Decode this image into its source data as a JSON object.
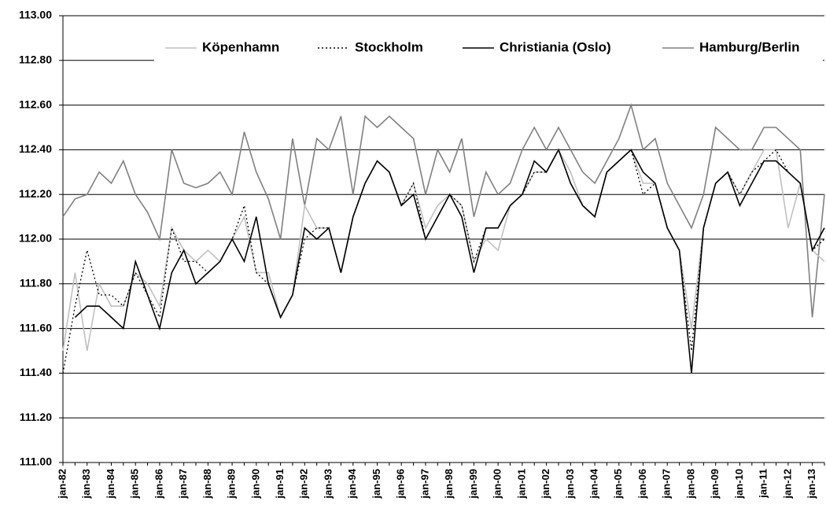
{
  "chart_data": {
    "type": "line",
    "categories": [
      "jan-82",
      null,
      "jan-83",
      null,
      "jan-84",
      null,
      "jan-85",
      null,
      "jan-86",
      null,
      "jan-87",
      null,
      "jan-88",
      null,
      "jan-89",
      null,
      "jan-90",
      null,
      "jan-91",
      null,
      "jan-92",
      null,
      "jan-93",
      null,
      "jan-94",
      null,
      "jan-95",
      null,
      "jan-96",
      null,
      "jan-97",
      null,
      "jan-98",
      null,
      "jan-99",
      null,
      "jan-00",
      null,
      "jan-01",
      null,
      "jan-02",
      null,
      "jan-03",
      null,
      "jan-04",
      null,
      "jan-05",
      null,
      "jan-06",
      null,
      "jan-07",
      null,
      "jan-08",
      null,
      "jan-09",
      null,
      "jan-10",
      null,
      "jan-11",
      null,
      "jan-12",
      null,
      "jan-13",
      null
    ],
    "series": [
      {
        "name": "Köpenhamn",
        "color": "#c0c0c0",
        "dash": "solid",
        "values": [
          111.5,
          111.85,
          111.5,
          111.8,
          111.7,
          111.7,
          111.85,
          111.8,
          111.7,
          112.05,
          111.95,
          111.9,
          111.95,
          111.9,
          112.0,
          112.1,
          111.85,
          111.85,
          111.65,
          111.75,
          112.15,
          112.05,
          112.05,
          111.85,
          112.1,
          112.25,
          112.35,
          112.3,
          112.15,
          112.25,
          112.05,
          112.15,
          112.2,
          112.15,
          111.9,
          112.0,
          111.95,
          112.15,
          112.2,
          112.3,
          112.3,
          112.4,
          112.3,
          112.15,
          112.1,
          112.3,
          112.35,
          112.4,
          112.25,
          112.25,
          112.05,
          111.95,
          111.6,
          112.05,
          112.25,
          112.3,
          112.2,
          112.3,
          112.4,
          112.4,
          112.05,
          112.25,
          111.95,
          111.9
        ]
      },
      {
        "name": "Stockholm",
        "color": "#000000",
        "dash": "dotted",
        "values": [
          111.4,
          111.7,
          111.95,
          111.75,
          111.75,
          111.7,
          111.85,
          111.75,
          111.65,
          112.05,
          111.9,
          111.9,
          111.85,
          111.9,
          112.0,
          112.15,
          111.85,
          111.8,
          111.65,
          111.75,
          112.0,
          112.05,
          112.05,
          111.85,
          112.1,
          112.25,
          112.35,
          112.3,
          112.15,
          112.25,
          112.0,
          112.1,
          112.2,
          112.15,
          111.9,
          112.05,
          112.05,
          112.15,
          112.2,
          112.3,
          112.3,
          112.4,
          112.25,
          112.15,
          112.1,
          112.3,
          112.35,
          112.4,
          112.2,
          112.25,
          112.05,
          111.95,
          111.5,
          112.05,
          112.25,
          112.3,
          112.2,
          112.3,
          112.35,
          112.4,
          112.3,
          112.25,
          111.95,
          112.0
        ]
      },
      {
        "name": "Christiania (Oslo)",
        "color": "#000000",
        "dash": "solid",
        "values": [
          null,
          111.65,
          111.7,
          111.7,
          111.65,
          111.6,
          111.9,
          111.75,
          111.6,
          111.85,
          111.95,
          111.8,
          111.85,
          111.9,
          112.0,
          111.9,
          112.1,
          111.8,
          111.65,
          111.75,
          112.05,
          112.0,
          112.05,
          111.85,
          112.1,
          112.25,
          112.35,
          112.3,
          112.15,
          112.2,
          112.0,
          112.1,
          112.2,
          112.1,
          111.85,
          112.05,
          112.05,
          112.15,
          112.2,
          112.35,
          112.3,
          112.4,
          112.25,
          112.15,
          112.1,
          112.3,
          112.35,
          112.4,
          112.3,
          112.25,
          112.05,
          111.95,
          111.4,
          112.05,
          112.25,
          112.3,
          112.15,
          112.25,
          112.35,
          112.35,
          112.3,
          112.25,
          111.95,
          112.05
        ]
      },
      {
        "name": "Hamburg/Berlin",
        "color": "#808080",
        "dash": "solid",
        "values": [
          112.1,
          112.18,
          112.2,
          112.3,
          112.25,
          112.35,
          112.2,
          112.12,
          112.0,
          112.4,
          112.25,
          112.23,
          112.25,
          112.3,
          112.2,
          112.48,
          112.3,
          112.18,
          112.0,
          112.45,
          112.15,
          112.45,
          112.4,
          112.55,
          112.2,
          112.55,
          112.5,
          112.55,
          112.5,
          112.45,
          112.2,
          112.4,
          112.3,
          112.45,
          112.1,
          112.3,
          112.2,
          112.25,
          112.4,
          112.5,
          112.4,
          112.5,
          112.4,
          112.3,
          112.25,
          112.35,
          112.45,
          112.6,
          112.4,
          112.45,
          112.25,
          112.15,
          112.05,
          112.2,
          112.5,
          112.45,
          112.4,
          112.4,
          112.5,
          112.5,
          112.45,
          112.4,
          111.65,
          112.2
        ]
      }
    ],
    "ylim": [
      111,
      113
    ],
    "yticks": [
      {
        "value": 111,
        "label": "111.00"
      },
      {
        "value": 111.2,
        "label": "111.20"
      },
      {
        "value": 111.4,
        "label": "111.40"
      },
      {
        "value": 111.6,
        "label": "111.60"
      },
      {
        "value": 111.8,
        "label": "111.80"
      },
      {
        "value": 112,
        "label": "112.00"
      },
      {
        "value": 112.2,
        "label": "112.20"
      },
      {
        "value": 112.4,
        "label": "112.40"
      },
      {
        "value": 112.6,
        "label": "112.60"
      },
      {
        "value": 112.8,
        "label": "112.80"
      },
      {
        "value": 113,
        "label": "113.00"
      }
    ],
    "grid": true,
    "legend": "top"
  }
}
